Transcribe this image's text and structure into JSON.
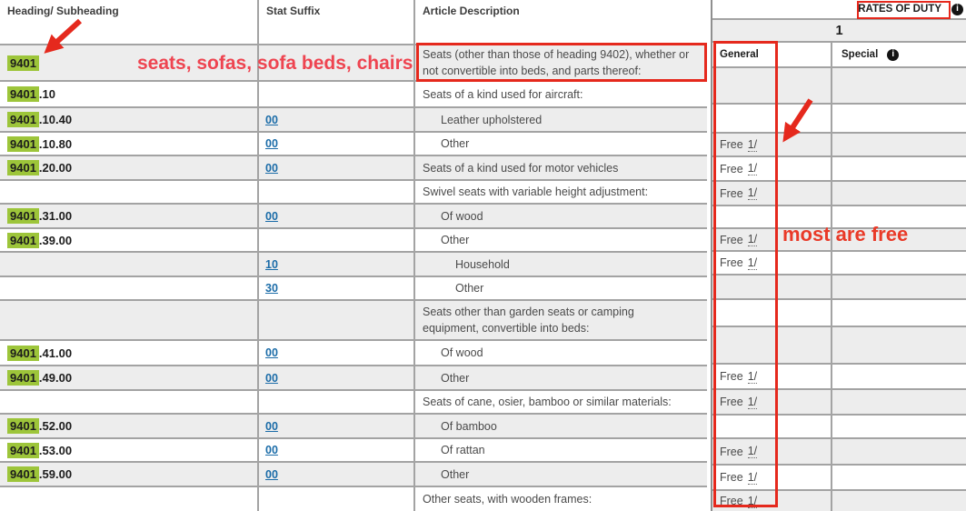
{
  "header": {
    "heading_col": "Heading/ Subheading",
    "stat_col": "Stat Suffix",
    "desc_col": "Article Description"
  },
  "rates": {
    "title": "RATES OF DUTY",
    "col_group": "1",
    "general_label": "General",
    "special_label": "Special",
    "info_glyph": "i",
    "free_label": "Free",
    "footnote": "1/",
    "general_free": [
      false,
      false,
      true,
      true,
      true,
      false,
      true,
      true,
      false,
      false,
      false,
      true,
      true,
      false,
      true,
      true,
      true
    ]
  },
  "rows": [
    {
      "code_prefix": "9401",
      "code_suffix": "",
      "stat": "",
      "desc": "Seats (other than those of heading 9402), whether or not convertible into beds, and parts thereof:",
      "indent": 1,
      "boxed": true
    },
    {
      "code_prefix": "9401",
      "code_suffix": ".10",
      "stat": "",
      "desc": "Seats of a kind used for aircraft:",
      "indent": 1
    },
    {
      "code_prefix": "9401",
      "code_suffix": ".10.40",
      "stat": "00",
      "desc": "Leather upholstered",
      "indent": 2
    },
    {
      "code_prefix": "9401",
      "code_suffix": ".10.80",
      "stat": "00",
      "desc": "Other",
      "indent": 2
    },
    {
      "code_prefix": "9401",
      "code_suffix": ".20.00",
      "stat": "00",
      "desc": "Seats of a kind used for motor vehicles",
      "indent": 1
    },
    {
      "code_prefix": "",
      "code_suffix": "",
      "stat": "",
      "desc": "Swivel seats with variable height adjustment:",
      "indent": 1
    },
    {
      "code_prefix": "9401",
      "code_suffix": ".31.00",
      "stat": "00",
      "desc": "Of wood",
      "indent": 2
    },
    {
      "code_prefix": "9401",
      "code_suffix": ".39.00",
      "stat": "",
      "desc": "Other",
      "indent": 2
    },
    {
      "code_prefix": "",
      "code_suffix": "",
      "stat": "10",
      "desc": "Household",
      "indent": 3
    },
    {
      "code_prefix": "",
      "code_suffix": "",
      "stat": "30",
      "desc": "Other",
      "indent": 3
    },
    {
      "code_prefix": "",
      "code_suffix": "",
      "stat": "",
      "desc": "Seats other than garden seats or camping equipment, convertible into beds:",
      "indent": 1
    },
    {
      "code_prefix": "9401",
      "code_suffix": ".41.00",
      "stat": "00",
      "desc": "Of wood",
      "indent": 2
    },
    {
      "code_prefix": "9401",
      "code_suffix": ".49.00",
      "stat": "00",
      "desc": "Other",
      "indent": 2
    },
    {
      "code_prefix": "",
      "code_suffix": "",
      "stat": "",
      "desc": "Seats of cane, osier, bamboo or similar materials:",
      "indent": 1
    },
    {
      "code_prefix": "9401",
      "code_suffix": ".52.00",
      "stat": "00",
      "desc": "Of bamboo",
      "indent": 2
    },
    {
      "code_prefix": "9401",
      "code_suffix": ".53.00",
      "stat": "00",
      "desc": "Of rattan",
      "indent": 2
    },
    {
      "code_prefix": "9401",
      "code_suffix": ".59.00",
      "stat": "00",
      "desc": "Other",
      "indent": 2
    },
    {
      "code_prefix": "",
      "code_suffix": "",
      "stat": "",
      "desc": "Other seats, with wooden frames:",
      "indent": 1
    }
  ],
  "annotations": {
    "heading_note": "seats, sofas, sofa beds, chairs",
    "rates_note": "most are free"
  },
  "colors": {
    "highlight_green": "#9dc53a",
    "annotation_red": "#e5291d",
    "note_red_1": "#ee4450",
    "note_red_2": "#e93a28",
    "link_blue": "#1b6ca8",
    "row_gray": "#ededed",
    "border_gray": "#a3a3a3",
    "text_gray": "#4a4a4a"
  }
}
